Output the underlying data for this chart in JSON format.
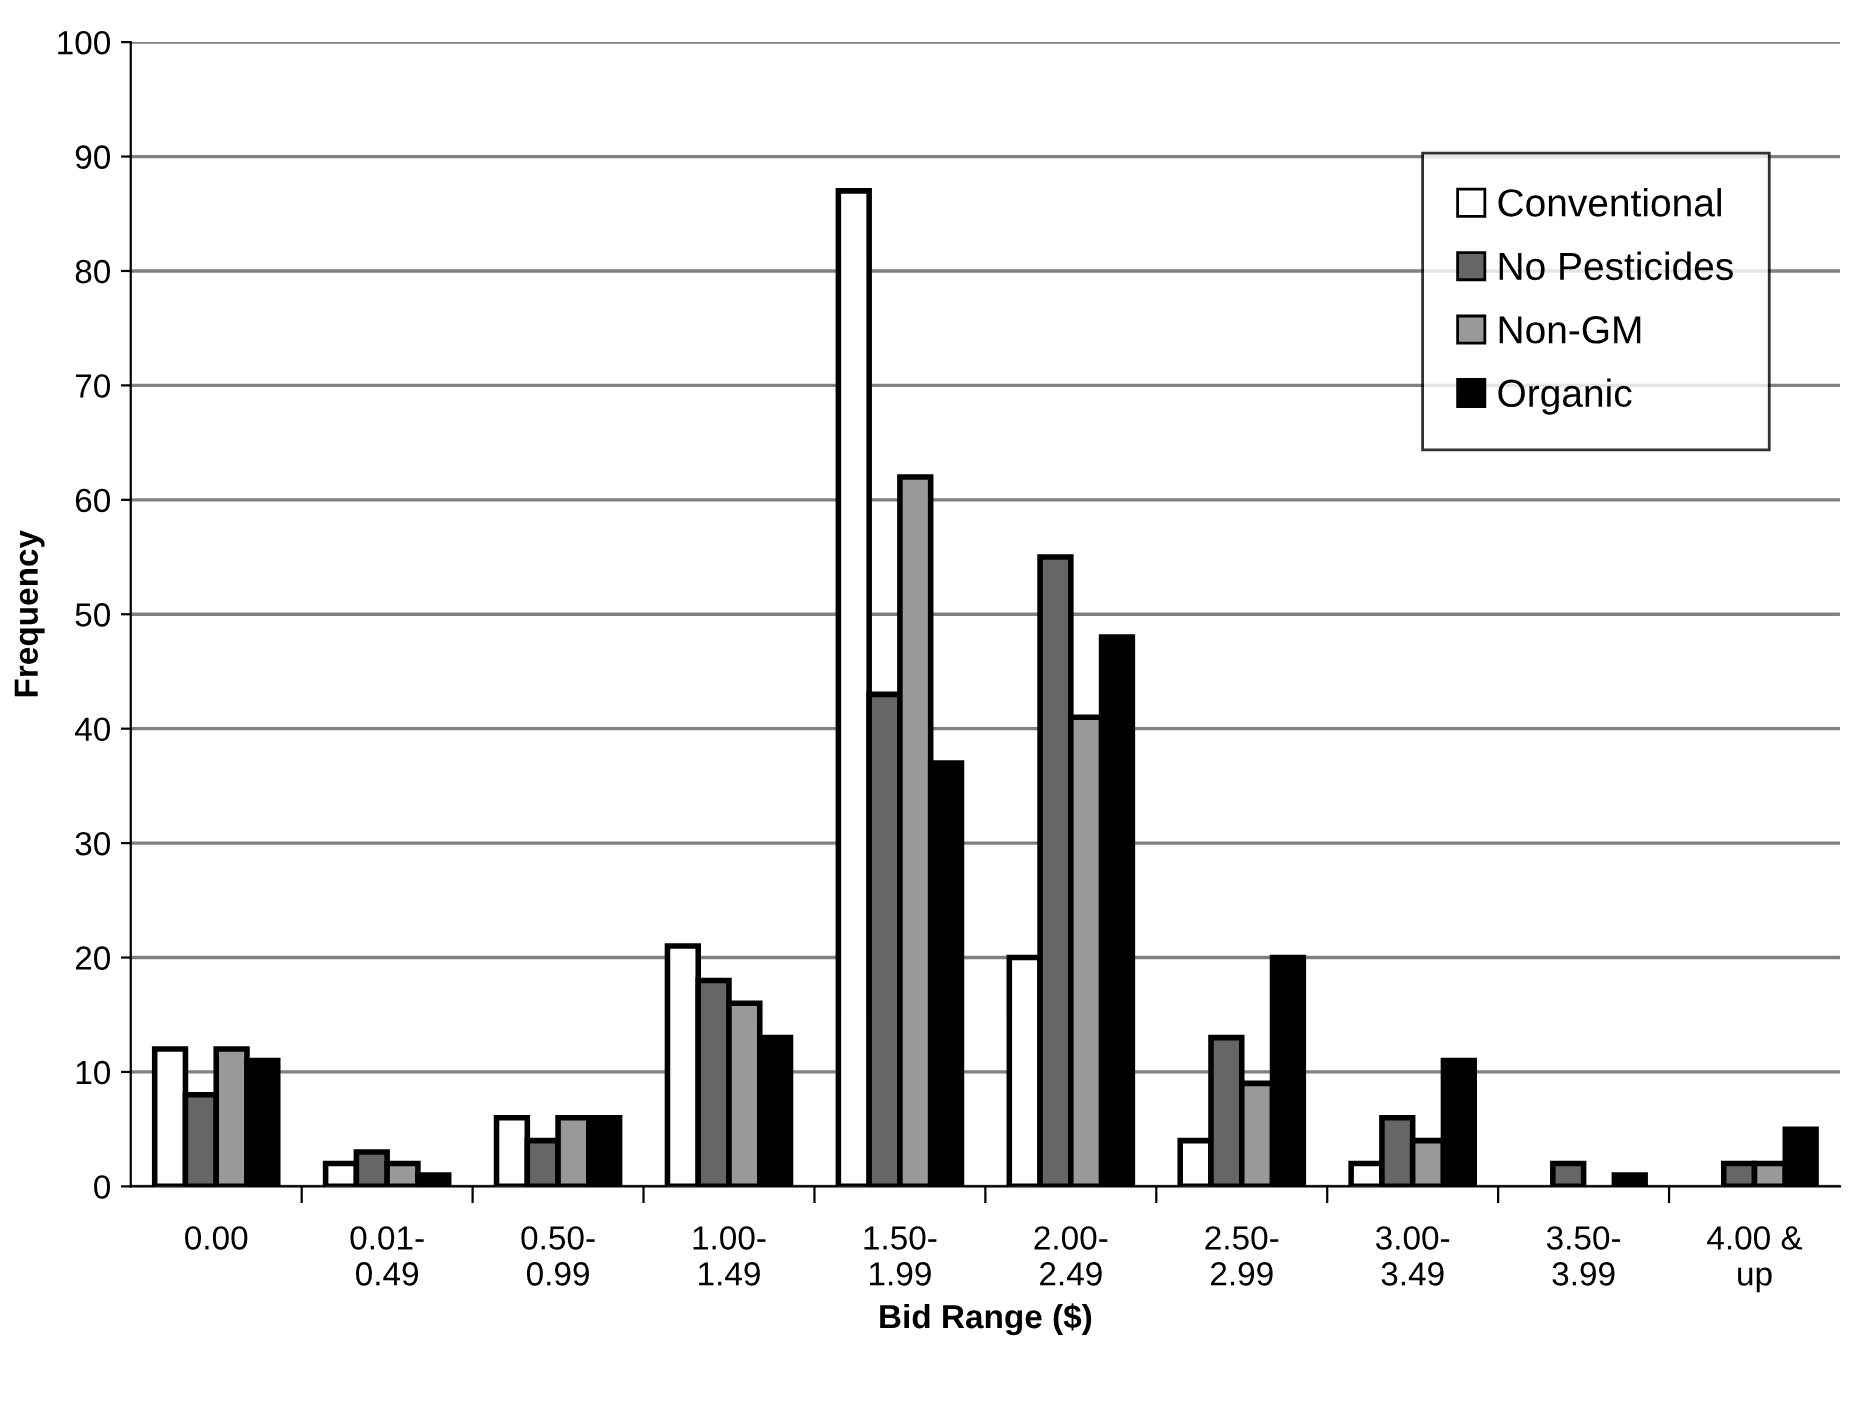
{
  "chart_data": {
    "type": "bar",
    "xlabel": "Bid Range ($)",
    "ylabel": "Frequency",
    "categories": [
      "0.00",
      "0.01-\n0.49",
      "0.50-\n0.99",
      "1.00-\n1.49",
      "1.50-\n1.99",
      "2.00-\n2.49",
      "2.50-\n2.99",
      "3.00-\n3.49",
      "3.50-\n3.99",
      "4.00 &\nup"
    ],
    "series": [
      {
        "name": "Conventional",
        "color": "#ffffff",
        "values": [
          12,
          2,
          6,
          21,
          87,
          20,
          4,
          2,
          0,
          0
        ]
      },
      {
        "name": "No Pesticides",
        "color": "#666666",
        "values": [
          8,
          3,
          4,
          18,
          43,
          55,
          13,
          6,
          2,
          2
        ]
      },
      {
        "name": "Non-GM",
        "color": "#999999",
        "values": [
          12,
          2,
          6,
          16,
          62,
          41,
          9,
          4,
          0,
          2
        ]
      },
      {
        "name": "Organic",
        "color": "#000000",
        "values": [
          11,
          1,
          6,
          13,
          37,
          48,
          20,
          11,
          1,
          5
        ]
      }
    ],
    "ylim": [
      0,
      100
    ],
    "yticks": [
      0,
      10,
      20,
      30,
      40,
      50,
      60,
      70,
      80,
      90,
      100
    ],
    "grid": "y",
    "legend": "top right"
  }
}
